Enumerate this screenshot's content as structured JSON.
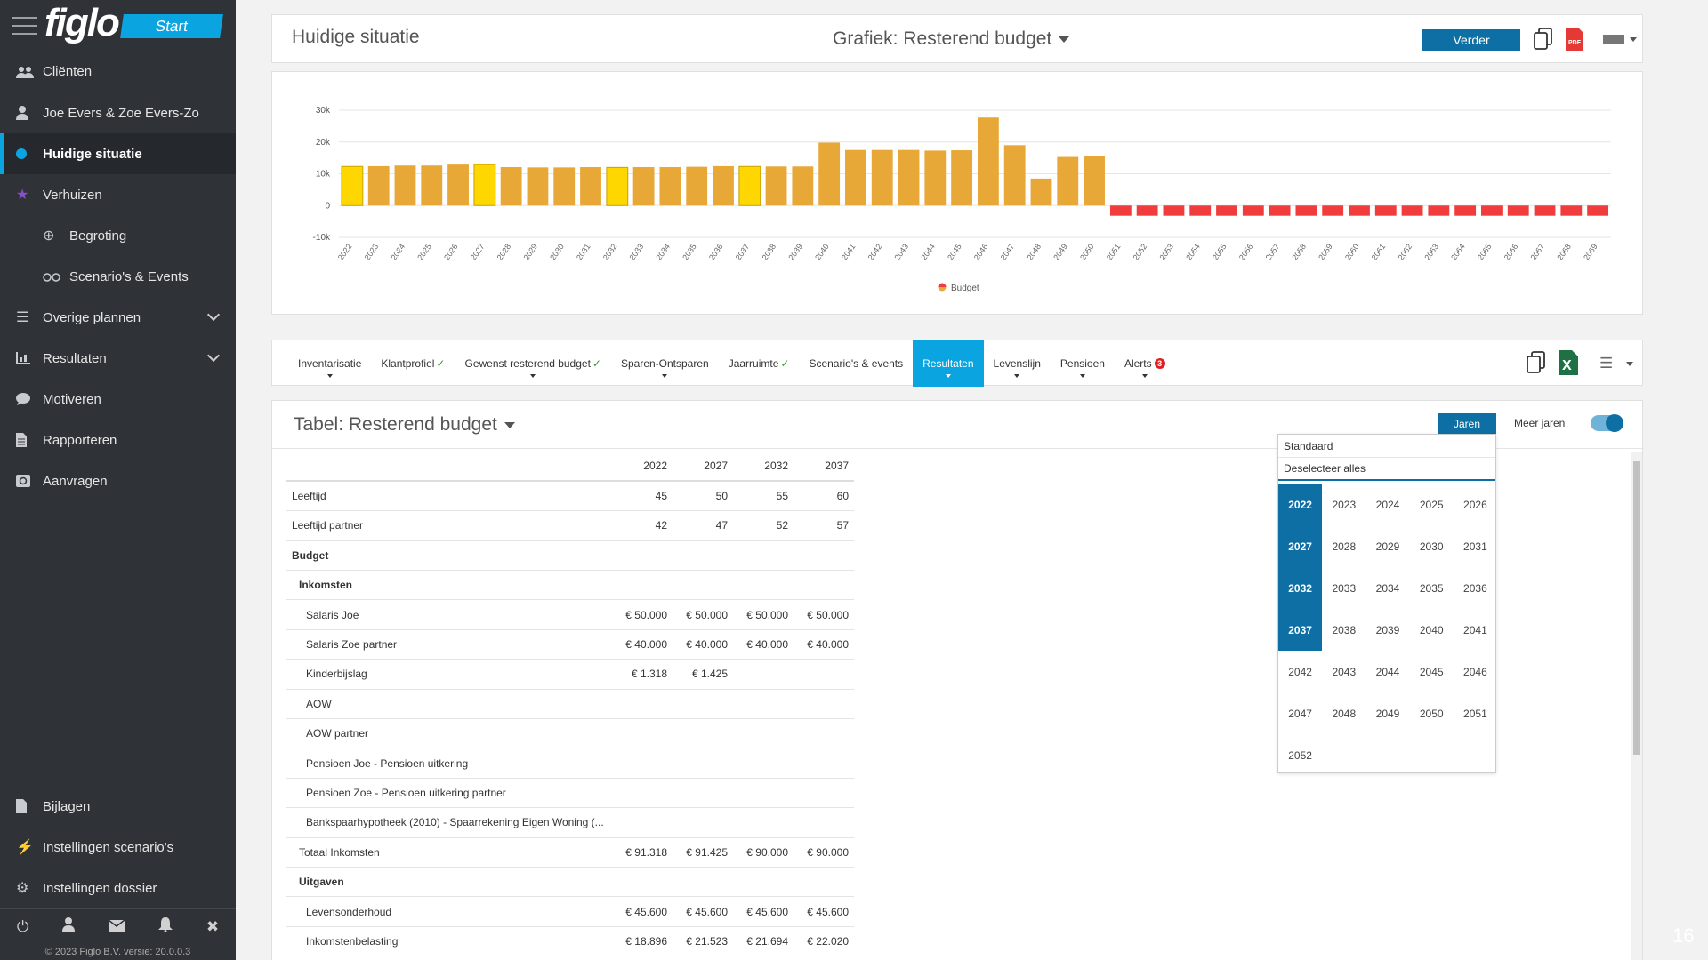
{
  "sidebar": {
    "logo": "figlo",
    "start_label": "Start",
    "items": [
      {
        "label": "Cliënten"
      },
      {
        "label": "Joe Evers & Zoe Evers-Zo"
      },
      {
        "label": "Huidige situatie"
      },
      {
        "label": "Verhuizen"
      },
      {
        "label": "Begroting"
      },
      {
        "label": "Scenario's & Events"
      },
      {
        "label": "Overige plannen"
      },
      {
        "label": "Resultaten"
      },
      {
        "label": "Motiveren"
      },
      {
        "label": "Rapporteren"
      },
      {
        "label": "Aanvragen"
      }
    ],
    "bottom_items": [
      {
        "label": "Bijlagen"
      },
      {
        "label": "Instellingen scenario's"
      },
      {
        "label": "Instellingen dossier"
      }
    ],
    "copyright": "© 2023 Figlo B.V. versie: 20.0.0.3"
  },
  "header": {
    "title": "Huidige situatie",
    "chart_select": "Grafiek: Resterend budget",
    "verder_label": "Verder"
  },
  "chart_data": {
    "type": "bar",
    "title": "",
    "xlabel": "",
    "ylabel": "",
    "ylim": [
      -10000,
      30000
    ],
    "yticks": [
      30000,
      20000,
      10000,
      0,
      -10000
    ],
    "ytick_labels": [
      "30k",
      "20k",
      "10k",
      "0",
      "-10k"
    ],
    "grid": true,
    "legend": "bottom-center",
    "categories": [
      "2022",
      "2023",
      "2024",
      "2025",
      "2026",
      "2027",
      "2028",
      "2029",
      "2030",
      "2031",
      "2032",
      "2033",
      "2034",
      "2035",
      "2036",
      "2037",
      "2038",
      "2039",
      "2040",
      "2041",
      "2042",
      "2043",
      "2044",
      "2045",
      "2046",
      "2047",
      "2048",
      "2049",
      "2050",
      "2051",
      "2052",
      "2053",
      "2054",
      "2055",
      "2056",
      "2057",
      "2058",
      "2059",
      "2060",
      "2061",
      "2062",
      "2063",
      "2064",
      "2065",
      "2066",
      "2067",
      "2068",
      "2069"
    ],
    "series": [
      {
        "name": "Budget",
        "values": [
          12300,
          12400,
          12600,
          12600,
          12900,
          12900,
          12100,
          12000,
          12000,
          12100,
          12000,
          12100,
          12100,
          12200,
          12400,
          12300,
          12300,
          12300,
          19800,
          17500,
          17500,
          17500,
          17300,
          17400,
          27700,
          19000,
          8500,
          15300,
          15500,
          -3200,
          -3200,
          -3200,
          -3200,
          -3200,
          -3200,
          -3200,
          -3200,
          -3200,
          -3200,
          -3200,
          -3200,
          -3200,
          -3200,
          -3200,
          -3200,
          -3200,
          -3200,
          -3200
        ]
      }
    ],
    "colors": {
      "positive": "#e8a838",
      "highlight": "#ffd700",
      "negative": "#f03c3c"
    },
    "highlight_years": [
      "2022",
      "2027",
      "2032",
      "2037"
    ]
  },
  "tabs": [
    {
      "label": "Inventarisatie",
      "check": "",
      "caret": true,
      "badge": ""
    },
    {
      "label": "Klantprofiel",
      "check": "✓",
      "caret": false,
      "badge": ""
    },
    {
      "label": "Gewenst resterend budget",
      "check": "✓",
      "caret": true,
      "badge": ""
    },
    {
      "label": "Sparen-Ontsparen",
      "check": "",
      "caret": true,
      "badge": ""
    },
    {
      "label": "Jaarruimte",
      "check": "✓",
      "caret": false,
      "badge": ""
    },
    {
      "label": "Scenario's & events",
      "check": "",
      "caret": false,
      "badge": ""
    },
    {
      "label": "Resultaten",
      "check": "",
      "caret": true,
      "badge": "",
      "active": true
    },
    {
      "label": "Levenslijn",
      "check": "",
      "caret": true,
      "badge": ""
    },
    {
      "label": "Pensioen",
      "check": "",
      "caret": true,
      "badge": ""
    },
    {
      "label": "Alerts",
      "check": "",
      "caret": true,
      "badge": "3"
    }
  ],
  "table_section": {
    "title": "Tabel: Resterend budget",
    "jaren_label": "Jaren",
    "meer_jaren_label": "Meer jaren",
    "columns": [
      "2022",
      "2027",
      "2032",
      "2037"
    ],
    "rows": [
      {
        "label": "Leeftijd",
        "indent": 0,
        "bold": false,
        "values": [
          "45",
          "50",
          "55",
          "60"
        ]
      },
      {
        "label": "Leeftijd partner",
        "indent": 0,
        "bold": false,
        "values": [
          "42",
          "47",
          "52",
          "57"
        ]
      },
      {
        "label": "Budget",
        "indent": 0,
        "bold": true,
        "values": [
          "",
          "",
          "",
          ""
        ]
      },
      {
        "label": "Inkomsten",
        "indent": 1,
        "bold": true,
        "values": [
          "",
          "",
          "",
          ""
        ]
      },
      {
        "label": "Salaris Joe",
        "indent": 2,
        "bold": false,
        "values": [
          "€ 50.000",
          "€ 50.000",
          "€ 50.000",
          "€ 50.000"
        ]
      },
      {
        "label": "Salaris Zoe partner",
        "indent": 2,
        "bold": false,
        "values": [
          "€ 40.000",
          "€ 40.000",
          "€ 40.000",
          "€ 40.000"
        ]
      },
      {
        "label": "Kinderbijslag",
        "indent": 2,
        "bold": false,
        "values": [
          "€ 1.318",
          "€ 1.425",
          "",
          ""
        ]
      },
      {
        "label": "AOW",
        "indent": 2,
        "bold": false,
        "values": [
          "",
          "",
          "",
          ""
        ]
      },
      {
        "label": "AOW partner",
        "indent": 2,
        "bold": false,
        "values": [
          "",
          "",
          "",
          ""
        ]
      },
      {
        "label": "Pensioen Joe - Pensioen uitkering",
        "indent": 2,
        "bold": false,
        "values": [
          "",
          "",
          "",
          ""
        ]
      },
      {
        "label": "Pensioen Zoe - Pensioen uitkering partner",
        "indent": 2,
        "bold": false,
        "values": [
          "",
          "",
          "",
          ""
        ]
      },
      {
        "label": "Bankspaarhypotheek (2010) - Spaarrekening Eigen Woning (...",
        "indent": 2,
        "bold": false,
        "values": [
          "",
          "",
          "",
          ""
        ]
      },
      {
        "label": "Totaal Inkomsten",
        "indent": 1,
        "bold": false,
        "values": [
          "€ 91.318",
          "€ 91.425",
          "€ 90.000",
          "€ 90.000"
        ]
      },
      {
        "label": "Uitgaven",
        "indent": 1,
        "bold": true,
        "values": [
          "",
          "",
          "",
          ""
        ]
      },
      {
        "label": "Levensonderhoud",
        "indent": 2,
        "bold": false,
        "values": [
          "€ 45.600",
          "€ 45.600",
          "€ 45.600",
          "€ 45.600"
        ]
      },
      {
        "label": "Inkomstenbelasting",
        "indent": 2,
        "bold": false,
        "values": [
          "€ 18.896",
          "€ 21.523",
          "€ 21.694",
          "€ 22.020"
        ]
      }
    ]
  },
  "year_panel": {
    "option_standard": "Standaard",
    "option_deselect": "Deselecteer alles",
    "years": [
      "2022",
      "2023",
      "2024",
      "2025",
      "2026",
      "2027",
      "2028",
      "2029",
      "2030",
      "2031",
      "2032",
      "2033",
      "2034",
      "2035",
      "2036",
      "2037",
      "2038",
      "2039",
      "2040",
      "2041",
      "2042",
      "2043",
      "2044",
      "2045",
      "2046",
      "2047",
      "2048",
      "2049",
      "2050",
      "2051",
      "2052"
    ],
    "selected": [
      "2022",
      "2027",
      "2032",
      "2037"
    ]
  },
  "page_number": "16"
}
